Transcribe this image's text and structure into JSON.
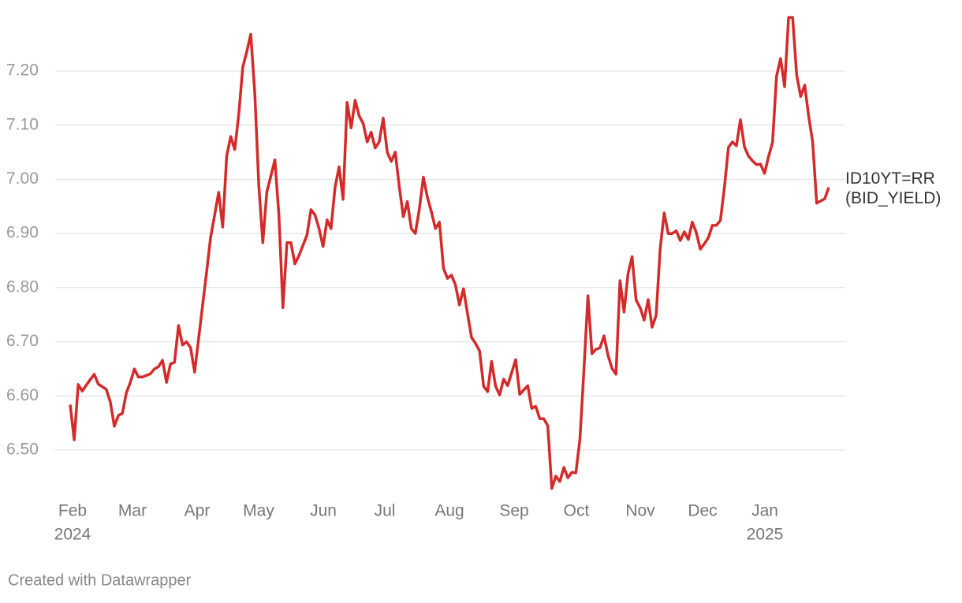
{
  "chart_data": {
    "type": "line",
    "xticks": [
      [
        "Feb",
        "2024"
      ],
      [
        "Mar"
      ],
      [
        "Apr"
      ],
      [
        "May"
      ],
      [
        "Jun"
      ],
      [
        "Jul"
      ],
      [
        "Aug"
      ],
      [
        "Sep"
      ],
      [
        "Oct"
      ],
      [
        "Nov"
      ],
      [
        "Dec"
      ],
      [
        "Jan",
        "2025"
      ]
    ],
    "ylim": [
      6.42,
      7.31
    ],
    "yticks": [
      {
        "value": 6.5,
        "label": "6.50"
      },
      {
        "value": 6.6,
        "label": "6.60"
      },
      {
        "value": 6.7,
        "label": "6.70"
      },
      {
        "value": 6.8,
        "label": "6.80"
      },
      {
        "value": 6.9,
        "label": "6.90"
      },
      {
        "value": 7.0,
        "label": "7.00"
      },
      {
        "value": 7.1,
        "label": "7.10"
      },
      {
        "value": 7.2,
        "label": "7.20"
      }
    ],
    "grid": true,
    "series": [
      {
        "name": "ID10YT=RR (BID_YIELD)",
        "color": "#d42a2a",
        "values": [
          6.584,
          6.519,
          6.621,
          6.609,
          6.62,
          6.63,
          6.64,
          6.622,
          6.617,
          6.612,
          6.589,
          6.544,
          6.564,
          6.568,
          6.606,
          6.625,
          6.65,
          6.635,
          6.635,
          6.638,
          6.641,
          6.65,
          6.654,
          6.666,
          6.625,
          6.659,
          6.662,
          6.73,
          6.694,
          6.7,
          6.689,
          6.644,
          6.706,
          6.768,
          6.83,
          6.893,
          6.934,
          6.976,
          6.912,
          7.043,
          7.079,
          7.055,
          7.12,
          7.207,
          7.236,
          7.268,
          7.16,
          6.989,
          6.883,
          6.977,
          7.006,
          7.036,
          6.934,
          6.763,
          6.883,
          6.883,
          6.844,
          6.859,
          6.878,
          6.897,
          6.944,
          6.934,
          6.909,
          6.876,
          6.925,
          6.909,
          6.985,
          7.023,
          6.963,
          7.142,
          7.095,
          7.146,
          7.117,
          7.103,
          7.069,
          7.087,
          7.058,
          7.069,
          7.113,
          7.05,
          7.033,
          7.05,
          6.986,
          6.931,
          6.959,
          6.909,
          6.9,
          6.945,
          7.004,
          6.967,
          6.94,
          6.909,
          6.921,
          6.836,
          6.817,
          6.823,
          6.805,
          6.768,
          6.798,
          6.752,
          6.708,
          6.697,
          6.683,
          6.618,
          6.608,
          6.664,
          6.618,
          6.602,
          6.631,
          6.619,
          6.643,
          6.667,
          6.603,
          6.611,
          6.619,
          6.577,
          6.581,
          6.558,
          6.558,
          6.545,
          6.429,
          6.452,
          6.442,
          6.468,
          6.449,
          6.459,
          6.458,
          6.519,
          6.647,
          6.785,
          6.678,
          6.686,
          6.689,
          6.711,
          6.675,
          6.651,
          6.64,
          6.813,
          6.755,
          6.826,
          6.857,
          6.777,
          6.763,
          6.74,
          6.778,
          6.727,
          6.749,
          6.871,
          6.938,
          6.9,
          6.9,
          6.905,
          6.887,
          6.903,
          6.889,
          6.921,
          6.902,
          6.871,
          6.881,
          6.892,
          6.915,
          6.915,
          6.924,
          6.985,
          7.059,
          7.069,
          7.062,
          7.11,
          7.06,
          7.043,
          7.034,
          7.027,
          7.028,
          7.011,
          7.042,
          7.068,
          7.19,
          7.223,
          7.171,
          7.299,
          7.299,
          7.193,
          7.153,
          7.174,
          7.116,
          7.069,
          6.956,
          6.96,
          6.964,
          6.985
        ]
      }
    ],
    "credit": "Created with Datawrapper"
  }
}
